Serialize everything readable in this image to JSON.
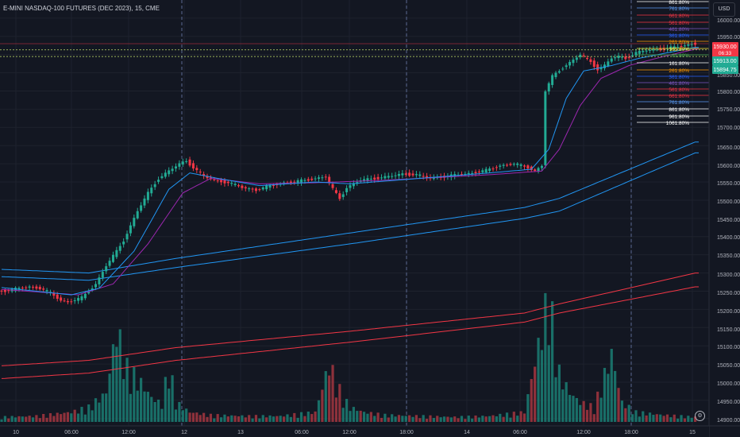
{
  "header": {
    "title": "E-MINI NASDAQ-100 FUTURES (DEC 2023), 15, CME",
    "currency_button": "USD",
    "pane_icon": "settings-icon"
  },
  "price_axis": {
    "labels": [
      "16000.00",
      "15950.00",
      "15850.00",
      "15800.00",
      "15750.00",
      "15700.00",
      "15650.00",
      "15600.00",
      "15550.00",
      "15500.00",
      "15450.00",
      "15400.00",
      "15350.00",
      "15300.00",
      "15250.00",
      "15200.00",
      "15150.00",
      "15100.00",
      "15050.00",
      "15000.00",
      "14950.00",
      "14900.00"
    ],
    "last_price_tag": {
      "price": "15930.00",
      "countdown": "06:33",
      "color": "#f23645"
    },
    "green_tags": [
      {
        "price": "15913.00",
        "color": "#22ab94"
      },
      {
        "price": "15894.75",
        "color": "#22ab94"
      }
    ]
  },
  "time_axis": {
    "labels": [
      "10",
      "06:00",
      "12:00",
      "12",
      "13",
      "06:00",
      "12:00",
      "18:00",
      "14",
      "06:00",
      "12:00",
      "18:00",
      "15"
    ]
  },
  "fib_levels": [
    {
      "label": "861.80%",
      "color": "#ffffff"
    },
    {
      "label": "761.80%",
      "color": "#5b9cf6"
    },
    {
      "label": "661.80%",
      "color": "#f23645"
    },
    {
      "label": "561.80%",
      "color": "#f23645"
    },
    {
      "label": "461.80%",
      "color": "#7e57c2"
    },
    {
      "label": "361.80%",
      "color": "#2962ff"
    },
    {
      "label": "261.80%",
      "color": "#ff9800"
    },
    {
      "label": "161.80%",
      "color": "#ffeb3b"
    },
    {
      "label": "61.80%",
      "color": "#4caf50"
    },
    {
      "label": "161.80%",
      "color": "#ffffff"
    },
    {
      "label": "261.80%",
      "color": "#ff9800"
    },
    {
      "label": "361.80%",
      "color": "#2962ff"
    },
    {
      "label": "461.80%",
      "color": "#7e57c2"
    },
    {
      "label": "561.80%",
      "color": "#f23645"
    },
    {
      "label": "661.80%",
      "color": "#f23645"
    },
    {
      "label": "761.80%",
      "color": "#5b9cf6"
    },
    {
      "label": "861.80%",
      "color": "#ffffff"
    },
    {
      "label": "961.80%",
      "color": "#ffffff"
    },
    {
      "label": "1061.80%",
      "color": "#ffffff"
    }
  ],
  "colors": {
    "background": "#131722",
    "up": "#22ab94",
    "down": "#f23645",
    "ma_blue": "#2196f3",
    "ma_purple": "#9c27b0",
    "ma_red": "#f23645",
    "grid": "#1e222d"
  },
  "chart_data": {
    "type": "candlestick",
    "y_range": [
      14880,
      16050
    ],
    "price_points": [
      [
        0,
        15250
      ],
      [
        3,
        15252
      ],
      [
        6,
        15258
      ],
      [
        9,
        15262
      ],
      [
        12,
        15258
      ],
      [
        15,
        15245
      ],
      [
        18,
        15225
      ],
      [
        20,
        15220
      ],
      [
        24,
        15232
      ],
      [
        28,
        15270
      ],
      [
        31,
        15320
      ],
      [
        34,
        15360
      ],
      [
        36,
        15390
      ],
      [
        40,
        15470
      ],
      [
        43,
        15520
      ],
      [
        46,
        15560
      ],
      [
        49,
        15580
      ],
      [
        52,
        15600
      ],
      [
        54,
        15608
      ],
      [
        56,
        15590
      ],
      [
        59,
        15565
      ],
      [
        62,
        15555
      ],
      [
        66,
        15548
      ],
      [
        70,
        15535
      ],
      [
        74,
        15528
      ],
      [
        78,
        15540
      ],
      [
        82,
        15548
      ],
      [
        86,
        15552
      ],
      [
        90,
        15558
      ],
      [
        94,
        15565
      ],
      [
        96,
        15530
      ],
      [
        98,
        15505
      ],
      [
        100,
        15535
      ],
      [
        104,
        15555
      ],
      [
        108,
        15560
      ],
      [
        112,
        15565
      ],
      [
        116,
        15572
      ],
      [
        120,
        15570
      ],
      [
        124,
        15560
      ],
      [
        128,
        15565
      ],
      [
        132,
        15570
      ],
      [
        136,
        15575
      ],
      [
        140,
        15582
      ],
      [
        144,
        15595
      ],
      [
        148,
        15600
      ],
      [
        152,
        15590
      ],
      [
        154,
        15580
      ],
      [
        156,
        15595
      ],
      [
        157,
        15800
      ],
      [
        159,
        15840
      ],
      [
        162,
        15865
      ],
      [
        165,
        15885
      ],
      [
        167,
        15900
      ],
      [
        170,
        15880
      ],
      [
        172,
        15860
      ],
      [
        174,
        15870
      ],
      [
        176,
        15890
      ],
      [
        178,
        15895
      ],
      [
        180,
        15890
      ],
      [
        183,
        15905
      ],
      [
        186,
        15912
      ],
      [
        190,
        15915
      ],
      [
        194,
        15920
      ],
      [
        197,
        15925
      ],
      [
        199,
        15930
      ]
    ],
    "volume_points": [
      [
        0,
        5
      ],
      [
        10,
        6
      ],
      [
        20,
        10
      ],
      [
        25,
        15
      ],
      [
        30,
        30
      ],
      [
        33,
        95
      ],
      [
        36,
        55
      ],
      [
        40,
        40
      ],
      [
        43,
        25
      ],
      [
        46,
        18
      ],
      [
        48,
        60
      ],
      [
        50,
        20
      ],
      [
        54,
        10
      ],
      [
        60,
        7
      ],
      [
        70,
        6
      ],
      [
        80,
        6
      ],
      [
        90,
        10
      ],
      [
        94,
        60
      ],
      [
        96,
        40
      ],
      [
        98,
        25
      ],
      [
        100,
        15
      ],
      [
        104,
        10
      ],
      [
        110,
        7
      ],
      [
        120,
        6
      ],
      [
        130,
        5
      ],
      [
        140,
        6
      ],
      [
        150,
        10
      ],
      [
        155,
        95
      ],
      [
        157,
        130
      ],
      [
        160,
        50
      ],
      [
        163,
        30
      ],
      [
        166,
        20
      ],
      [
        170,
        15
      ],
      [
        175,
        70
      ],
      [
        178,
        20
      ],
      [
        182,
        10
      ],
      [
        190,
        7
      ],
      [
        199,
        5
      ]
    ],
    "ma_blue_inner": [
      [
        0,
        15260
      ],
      [
        20,
        15240
      ],
      [
        28,
        15258
      ],
      [
        38,
        15360
      ],
      [
        48,
        15530
      ],
      [
        54,
        15575
      ],
      [
        62,
        15560
      ],
      [
        74,
        15540
      ],
      [
        90,
        15550
      ],
      [
        100,
        15545
      ],
      [
        120,
        15560
      ],
      [
        140,
        15575
      ],
      [
        152,
        15585
      ],
      [
        157,
        15640
      ],
      [
        162,
        15780
      ],
      [
        167,
        15855
      ],
      [
        175,
        15870
      ],
      [
        183,
        15890
      ],
      [
        199,
        15920
      ]
    ],
    "ma_purple": [
      [
        0,
        15255
      ],
      [
        22,
        15240
      ],
      [
        32,
        15270
      ],
      [
        42,
        15380
      ],
      [
        52,
        15520
      ],
      [
        60,
        15560
      ],
      [
        74,
        15545
      ],
      [
        90,
        15548
      ],
      [
        110,
        15555
      ],
      [
        140,
        15570
      ],
      [
        155,
        15580
      ],
      [
        160,
        15640
      ],
      [
        166,
        15760
      ],
      [
        172,
        15835
      ],
      [
        180,
        15870
      ],
      [
        190,
        15895
      ],
      [
        199,
        15915
      ]
    ],
    "ma_band_blue": {
      "upper": [
        [
          0,
          15310
        ],
        [
          25,
          15300
        ],
        [
          50,
          15340
        ],
        [
          100,
          15410
        ],
        [
          150,
          15480
        ],
        [
          160,
          15505
        ],
        [
          199,
          15660
        ]
      ],
      "lower": [
        [
          0,
          15290
        ],
        [
          25,
          15280
        ],
        [
          50,
          15315
        ],
        [
          100,
          15380
        ],
        [
          150,
          15450
        ],
        [
          160,
          15470
        ],
        [
          199,
          15630
        ]
      ]
    },
    "ma_band_red": {
      "upper": [
        [
          0,
          15045
        ],
        [
          25,
          15060
        ],
        [
          50,
          15095
        ],
        [
          100,
          15140
        ],
        [
          150,
          15190
        ],
        [
          160,
          15215
        ],
        [
          199,
          15300
        ]
      ],
      "lower": [
        [
          0,
          15010
        ],
        [
          25,
          15025
        ],
        [
          50,
          15060
        ],
        [
          100,
          15110
        ],
        [
          150,
          15165
        ],
        [
          160,
          15190
        ],
        [
          199,
          15262
        ]
      ]
    }
  }
}
